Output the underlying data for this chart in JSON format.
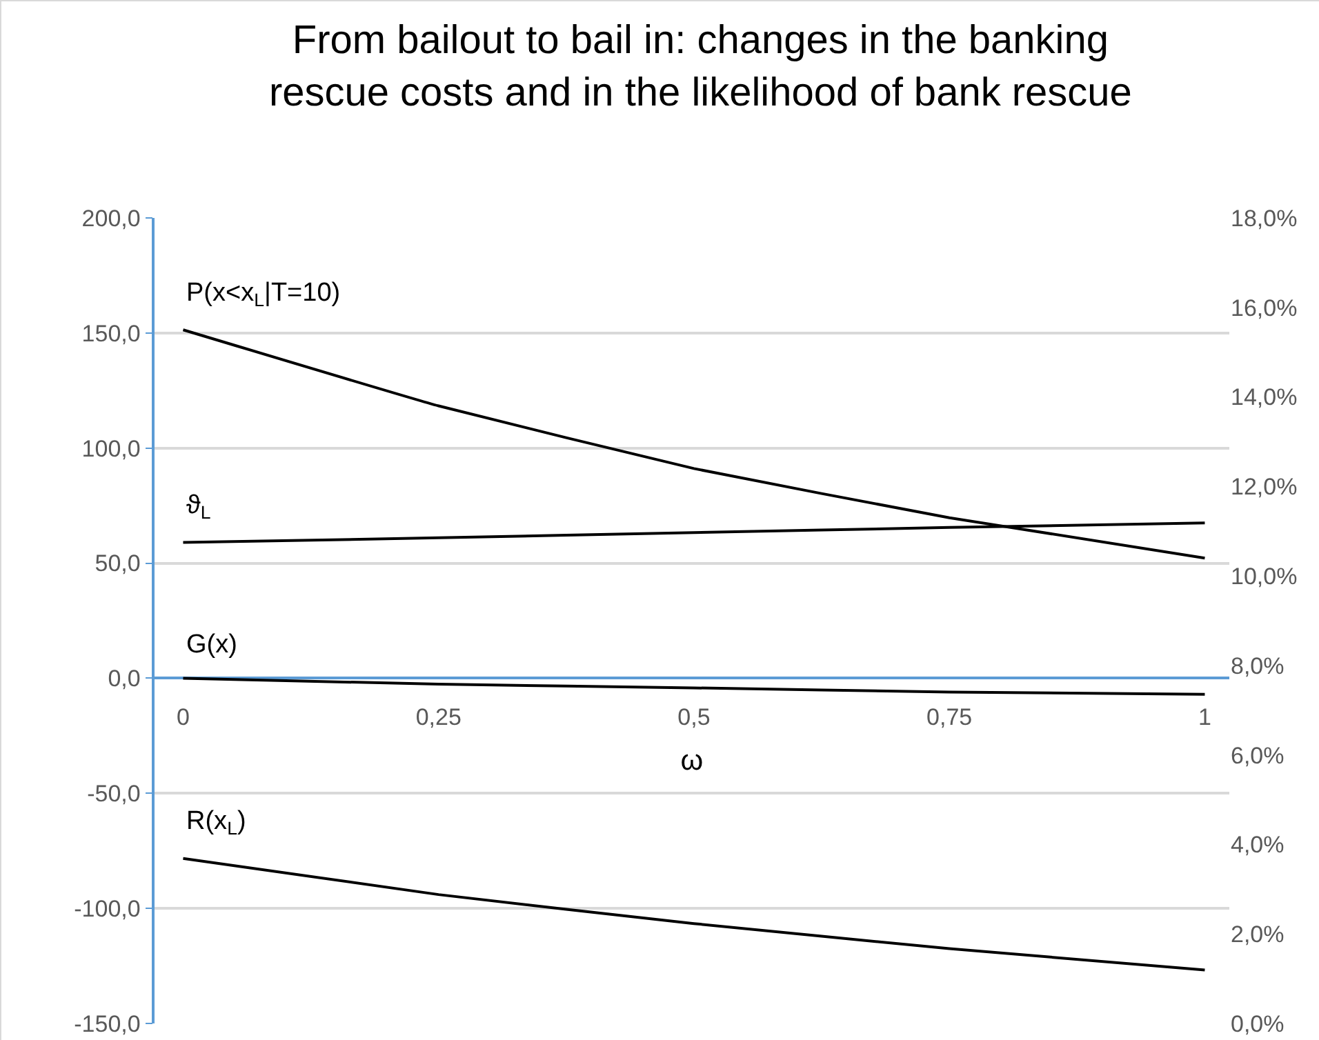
{
  "chart_data": {
    "type": "line",
    "title": "From bailout to bail in: changes in the banking rescue costs and in the likelihood of bank rescue",
    "xlabel": "ω",
    "x": [
      0,
      0.25,
      0.5,
      0.75,
      1
    ],
    "series": [
      {
        "name": "P(x<x$_{L}$|T=10)",
        "color": "#000000",
        "axis": "y2",
        "values": [
          15.5,
          13.8,
          12.4,
          11.3,
          10.4
        ]
      },
      {
        "name": "ϑ$_{L}$",
        "color": "#000000",
        "values": [
          59,
          61,
          63.3,
          65.5,
          67.5
        ]
      },
      {
        "name": "G(x)",
        "color": "#000000",
        "values": [
          0,
          -2.6,
          -4.2,
          -6,
          -7
        ]
      },
      {
        "name": "R(x$_{L}$)",
        "color": "#000000",
        "values": [
          -78.3,
          -94,
          -106.6,
          -117.5,
          -126.8
        ]
      }
    ],
    "xlim": [
      -0.028,
      1.024
    ],
    "xticks": [
      0,
      {
        "value": 0.25,
        "label": "0,25"
      },
      {
        "value": 0.5,
        "label": "0,5"
      },
      {
        "value": 0.75,
        "label": "0,75"
      },
      1
    ],
    "ylim": [
      -150,
      200
    ],
    "yticks": [
      {
        "value": -150,
        "label": "-150,0"
      },
      {
        "value": -100,
        "label": "-100,0"
      },
      {
        "value": -50,
        "label": "-50,0"
      },
      {
        "value": 0,
        "label": "0,0"
      },
      {
        "value": 50,
        "label": "50,0"
      },
      {
        "value": 100,
        "label": "100,0"
      },
      {
        "value": 150,
        "label": "150,0"
      },
      {
        "value": 200,
        "label": "200,0"
      }
    ],
    "y2lim": [
      0,
      18
    ],
    "y2ticks": [
      {
        "value": 0,
        "label": "0,0%"
      },
      {
        "value": 2,
        "label": "2,0%"
      },
      {
        "value": 4,
        "label": "4,0%"
      },
      {
        "value": 6,
        "label": "6,0%"
      },
      {
        "value": 8,
        "label": "8,0%"
      },
      {
        "value": 10,
        "label": "10,0%"
      },
      {
        "value": 12,
        "label": "12,0%"
      },
      {
        "value": 14,
        "label": "14,0%"
      },
      {
        "value": 16,
        "label": "16,0%"
      },
      {
        "value": 18,
        "label": "18,0%"
      }
    ],
    "grid": "y",
    "legend": false,
    "line_style": "solid",
    "marker": "none"
  }
}
